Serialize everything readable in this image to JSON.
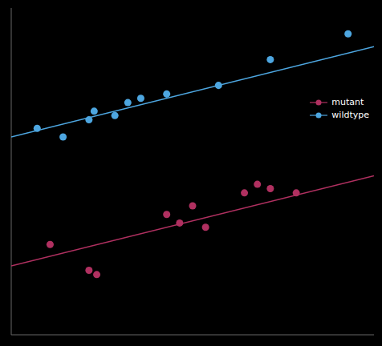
{
  "chart_data": {
    "type": "scatter",
    "series": [
      {
        "name": "mutant",
        "color": "#b03060",
        "x": [
          8.5,
          10,
          10.3,
          13,
          13.5,
          14,
          14.5,
          16,
          16.5,
          17,
          18
        ],
        "values": [
          103,
          97,
          96,
          110,
          108,
          112,
          107,
          115,
          117,
          116,
          115
        ],
        "fit_x": [
          7,
          21
        ],
        "fit_values": [
          98,
          119
        ]
      },
      {
        "name": "wildtype",
        "color": "#4da6e0",
        "x": [
          8,
          9,
          10,
          10.2,
          11,
          11.5,
          12,
          13,
          15,
          17,
          20
        ],
        "values": [
          130,
          128,
          132,
          134,
          133,
          136,
          137,
          138,
          140,
          146,
          152
        ],
        "fit_x": [
          7,
          21
        ],
        "fit_values": [
          128,
          149
        ]
      }
    ],
    "xlim": [
      7,
      21
    ],
    "ylim": [
      82,
      158
    ],
    "tick_labels": false,
    "grid": false,
    "legend": "upper right"
  }
}
